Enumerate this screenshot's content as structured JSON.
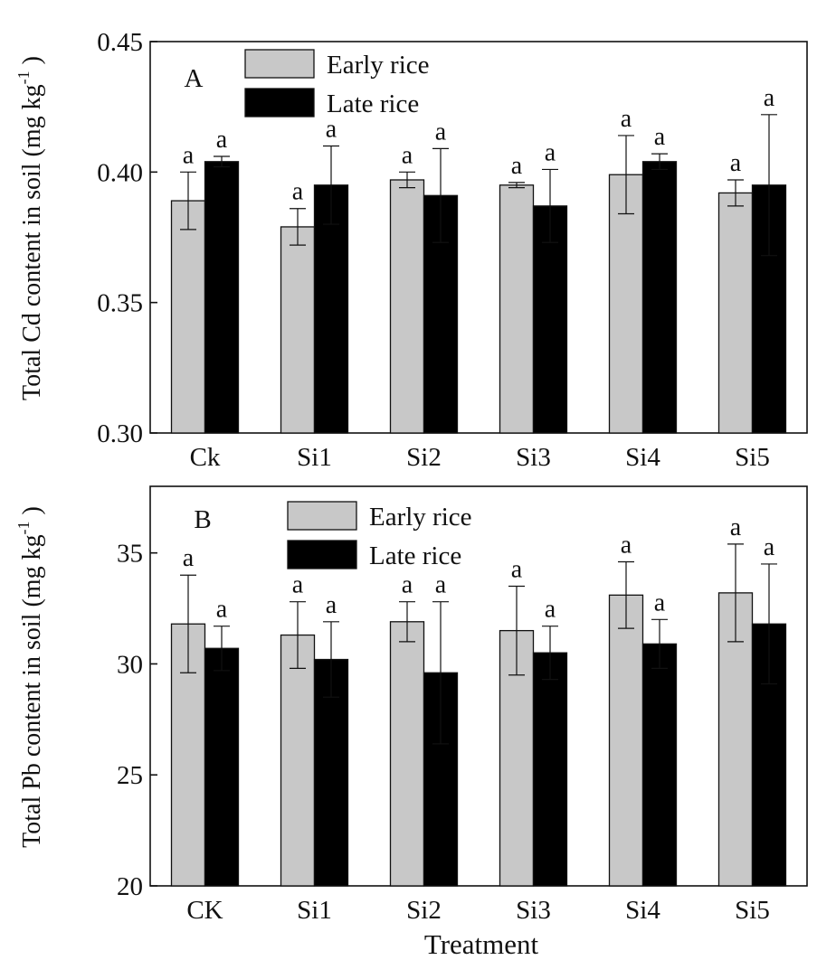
{
  "figure": {
    "xlabel": "Treatment"
  },
  "chart_data": [
    {
      "type": "bar",
      "panel_label": "A",
      "ylabel_parts": {
        "main": "Total Cd content in soil (mg kg",
        "sup": "-1",
        "close": ")"
      },
      "categories": [
        "Ck",
        "Si1",
        "Si2",
        "Si3",
        "Si4",
        "Si5"
      ],
      "ylim": [
        0.3,
        0.45
      ],
      "yticks": [
        0.3,
        0.35,
        0.4,
        0.45
      ],
      "ytick_labels": [
        "0.30",
        "0.35",
        "0.40",
        "0.45"
      ],
      "grid": false,
      "legend_position": "top-left",
      "series": [
        {
          "name": "Early rice",
          "color": "#c8c8c8",
          "values": [
            0.389,
            0.379,
            0.397,
            0.395,
            0.399,
            0.392
          ],
          "errors": [
            0.011,
            0.007,
            0.003,
            0.001,
            0.015,
            0.005
          ],
          "letters": [
            "a",
            "a",
            "a",
            "a",
            "a",
            "a"
          ]
        },
        {
          "name": "Late rice",
          "color": "#000000",
          "values": [
            0.404,
            0.395,
            0.391,
            0.387,
            0.404,
            0.395
          ],
          "errors": [
            0.002,
            0.015,
            0.018,
            0.014,
            0.003,
            0.027
          ],
          "letters": [
            "a",
            "a",
            "a",
            "a",
            "a",
            "a"
          ]
        }
      ]
    },
    {
      "type": "bar",
      "panel_label": "B",
      "ylabel_parts": {
        "main": "Total Pb content in soil (mg kg",
        "sup": "-1",
        "close": ")"
      },
      "categories": [
        "CK",
        "Si1",
        "Si2",
        "Si3",
        "Si4",
        "Si5"
      ],
      "ylim": [
        20,
        38
      ],
      "yticks": [
        20,
        25,
        30,
        35
      ],
      "ytick_labels": [
        "20",
        "25",
        "30",
        "35"
      ],
      "grid": false,
      "legend_position": "top-center",
      "series": [
        {
          "name": "Early rice",
          "color": "#c8c8c8",
          "values": [
            31.8,
            31.3,
            31.9,
            31.5,
            33.1,
            33.2
          ],
          "errors": [
            2.2,
            1.5,
            0.9,
            2.0,
            1.5,
            2.2
          ],
          "letters": [
            "a",
            "a",
            "a",
            "a",
            "a",
            "a"
          ]
        },
        {
          "name": "Late rice",
          "color": "#000000",
          "values": [
            30.7,
            30.2,
            29.6,
            30.5,
            30.9,
            31.8
          ],
          "errors": [
            1.0,
            1.7,
            3.2,
            1.2,
            1.1,
            2.7
          ],
          "letters": [
            "a",
            "a",
            "a",
            "a",
            "a",
            "a"
          ]
        }
      ]
    }
  ]
}
